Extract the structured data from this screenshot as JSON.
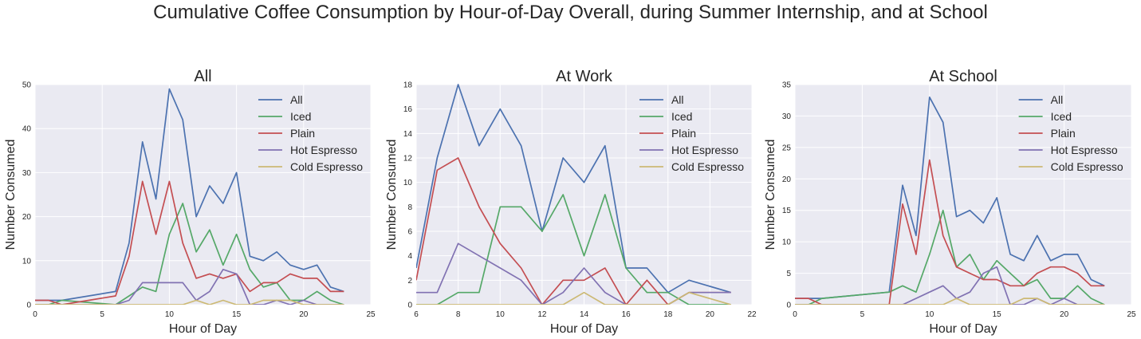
{
  "figure": {
    "suptitle": "Cumulative Coffee Consumption by Hour-of-Day Overall, during Summer Internship, and at School"
  },
  "colors": {
    "background": "#eaeaf2",
    "grid": "#ffffff",
    "All": "#4c72b0",
    "Iced": "#55a868",
    "Plain": "#c44e52",
    "Hot Espresso": "#8172b2",
    "Cold Espresso": "#ccb974"
  },
  "chart_data": [
    {
      "type": "line",
      "title": "All",
      "xlabel": "Hour of Day",
      "ylabel": "Number Consumed",
      "xlim": [
        0,
        25
      ],
      "ylim": [
        0,
        50
      ],
      "xticks": [
        0,
        5,
        10,
        15,
        20,
        25
      ],
      "yticks": [
        0,
        10,
        20,
        30,
        40,
        50
      ],
      "grid": true,
      "legend": "top-right",
      "x": [
        0,
        1,
        2,
        6,
        7,
        8,
        9,
        10,
        11,
        12,
        13,
        14,
        15,
        16,
        17,
        18,
        19,
        20,
        21,
        22,
        23
      ],
      "series": [
        {
          "name": "All",
          "values": [
            1,
            1,
            1,
            3,
            14,
            37,
            24,
            49,
            42,
            20,
            27,
            23,
            30,
            11,
            10,
            12,
            9,
            8,
            9,
            4,
            3
          ]
        },
        {
          "name": "Iced",
          "values": [
            0,
            0,
            1,
            0,
            2,
            4,
            3,
            16,
            23,
            12,
            17,
            9,
            16,
            8,
            4,
            5,
            1,
            1,
            3,
            1,
            0
          ]
        },
        {
          "name": "Plain",
          "values": [
            1,
            1,
            0,
            2,
            11,
            28,
            16,
            28,
            14,
            6,
            7,
            6,
            7,
            3,
            5,
            5,
            7,
            6,
            6,
            3,
            3
          ]
        },
        {
          "name": "Hot Espresso",
          "values": [
            0,
            0,
            0,
            0,
            1,
            5,
            5,
            5,
            5,
            1,
            3,
            8,
            7,
            0,
            0,
            1,
            0,
            1,
            0,
            0,
            0
          ]
        },
        {
          "name": "Cold Espresso",
          "values": [
            0,
            0,
            0,
            0,
            0,
            0,
            0,
            0,
            0,
            1,
            0,
            1,
            0,
            0,
            1,
            1,
            1,
            0,
            0,
            0,
            0
          ]
        }
      ]
    },
    {
      "type": "line",
      "title": "At Work",
      "xlabel": "Hour of Day",
      "ylabel": "Number Consumed",
      "xlim": [
        6,
        22
      ],
      "ylim": [
        0,
        18
      ],
      "xticks": [
        6,
        8,
        10,
        12,
        14,
        16,
        18,
        20,
        22
      ],
      "yticks": [
        0,
        2,
        4,
        6,
        8,
        10,
        12,
        14,
        16,
        18
      ],
      "grid": true,
      "legend": "top-right",
      "x": [
        6,
        7,
        8,
        9,
        10,
        11,
        12,
        13,
        14,
        15,
        16,
        17,
        18,
        19,
        20,
        21
      ],
      "series": [
        {
          "name": "All",
          "values": [
            3,
            12,
            18,
            13,
            16,
            13,
            6,
            12,
            10,
            13,
            3,
            3,
            1,
            2,
            1.5,
            1
          ]
        },
        {
          "name": "Iced",
          "values": [
            0,
            0,
            1,
            1,
            8,
            8,
            6,
            9,
            4,
            9,
            3,
            1,
            1,
            0,
            0,
            0
          ]
        },
        {
          "name": "Plain",
          "values": [
            2,
            11,
            12,
            8,
            5,
            3,
            0,
            2,
            2,
            3,
            0,
            2,
            0,
            1,
            1,
            1
          ]
        },
        {
          "name": "Hot Espresso",
          "values": [
            1,
            1,
            5,
            4,
            3,
            2,
            0,
            1,
            3,
            1,
            0,
            0,
            0,
            1,
            1,
            1
          ]
        },
        {
          "name": "Cold Espresso",
          "values": [
            0,
            0,
            0,
            0,
            0,
            0,
            0,
            0,
            1,
            0,
            0,
            0,
            0,
            1,
            0.5,
            0
          ]
        }
      ]
    },
    {
      "type": "line",
      "title": "At School",
      "xlabel": "Hour of Day",
      "ylabel": "Number Consumed",
      "xlim": [
        0,
        25
      ],
      "ylim": [
        0,
        35
      ],
      "xticks": [
        0,
        5,
        10,
        15,
        20,
        25
      ],
      "yticks": [
        0,
        5,
        10,
        15,
        20,
        25,
        30,
        35
      ],
      "grid": true,
      "legend": "top-right",
      "x": [
        0,
        1,
        2,
        7,
        8,
        9,
        10,
        11,
        12,
        13,
        14,
        15,
        16,
        17,
        18,
        19,
        20,
        21,
        22,
        23
      ],
      "series": [
        {
          "name": "All",
          "values": [
            1,
            1,
            1,
            2,
            19,
            11,
            33,
            29,
            14,
            15,
            13,
            17,
            8,
            7,
            11,
            7,
            8,
            8,
            4,
            3
          ]
        },
        {
          "name": "Iced",
          "values": [
            0,
            0,
            1,
            2,
            3,
            2,
            8,
            15,
            6,
            8,
            4,
            7,
            5,
            3,
            4,
            1,
            1,
            3,
            1,
            0
          ]
        },
        {
          "name": "Plain",
          "values": [
            1,
            1,
            0,
            0,
            16,
            8,
            23,
            11,
            6,
            5,
            4,
            4,
            3,
            3,
            5,
            6,
            6,
            5,
            3,
            3
          ]
        },
        {
          "name": "Hot Espresso",
          "values": [
            0,
            0,
            0,
            0,
            0,
            1,
            2,
            3,
            1,
            2,
            5,
            6,
            0,
            0,
            1,
            0,
            1,
            0,
            0,
            0
          ]
        },
        {
          "name": "Cold Espresso",
          "values": [
            0,
            0,
            0,
            0,
            0,
            0,
            0,
            0,
            1,
            0,
            0,
            0,
            0,
            1,
            1,
            0,
            0,
            0,
            0,
            0
          ]
        }
      ]
    }
  ]
}
